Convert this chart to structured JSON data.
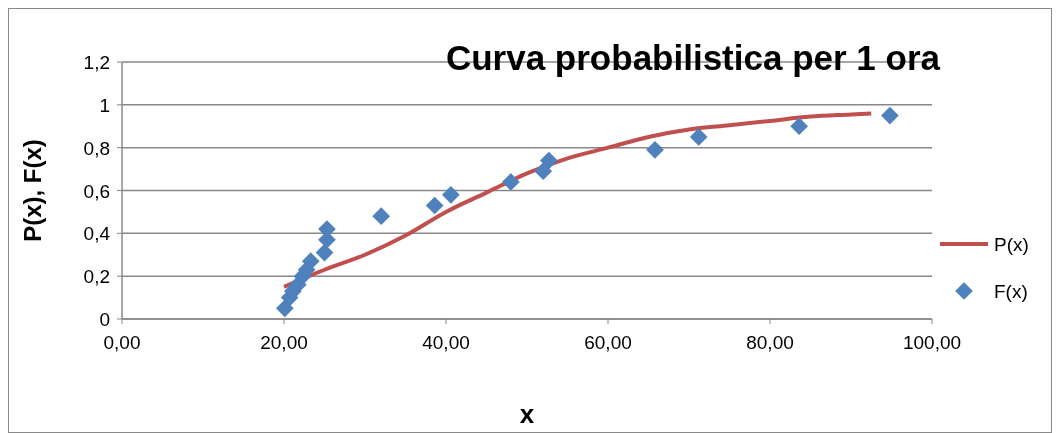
{
  "chart_data": {
    "type": "scatter",
    "title": "Curva probabilistica per 1 ora",
    "xlabel": "x",
    "ylabel": "P(x), F(x)",
    "xlim": [
      0,
      100
    ],
    "xticks": [
      {
        "value": 0,
        "label": "0,00"
      },
      {
        "value": 20,
        "label": "20,00"
      },
      {
        "value": 40,
        "label": "40,00"
      },
      {
        "value": 60,
        "label": "60,00"
      },
      {
        "value": 80,
        "label": "80,00"
      },
      {
        "value": 100,
        "label": "100,00"
      }
    ],
    "ylim": [
      0,
      1.2
    ],
    "yticks": [
      0,
      {
        "value": 0.2,
        "label": "0,2"
      },
      {
        "value": 0.4,
        "label": "0,4"
      },
      {
        "value": 0.6,
        "label": "0,6"
      },
      {
        "value": 0.8,
        "label": "0,8"
      },
      1,
      {
        "value": 1.2,
        "label": "1,2"
      }
    ],
    "grid": "y",
    "legend": "right",
    "series": [
      {
        "name": "P(x)",
        "type": "line",
        "color": "#c0504d",
        "line_style": "solid",
        "x": [
          20,
          25,
          30,
          35,
          40,
          45,
          50,
          55,
          60,
          65,
          70,
          75,
          80,
          85,
          90,
          92.5
        ],
        "values": [
          0.15,
          0.23,
          0.3,
          0.39,
          0.5,
          0.59,
          0.68,
          0.75,
          0.8,
          0.85,
          0.885,
          0.905,
          0.925,
          0.945,
          0.955,
          0.96
        ]
      },
      {
        "name": "F(x)",
        "color": "#4f81bd",
        "marker": "diamond",
        "x": [
          20.1,
          20.7,
          21.1,
          21.7,
          22.3,
          22.8,
          23.3,
          25,
          25.3,
          25.3,
          32,
          38.6,
          40.6,
          48,
          52,
          52.7,
          65.8,
          71.2,
          83.6,
          94.8
        ],
        "values": [
          0.05,
          0.1,
          0.13,
          0.16,
          0.2,
          0.23,
          0.27,
          0.31,
          0.37,
          0.42,
          0.48,
          0.53,
          0.58,
          0.64,
          0.69,
          0.74,
          0.79,
          0.85,
          0.9,
          0.95
        ]
      }
    ]
  }
}
